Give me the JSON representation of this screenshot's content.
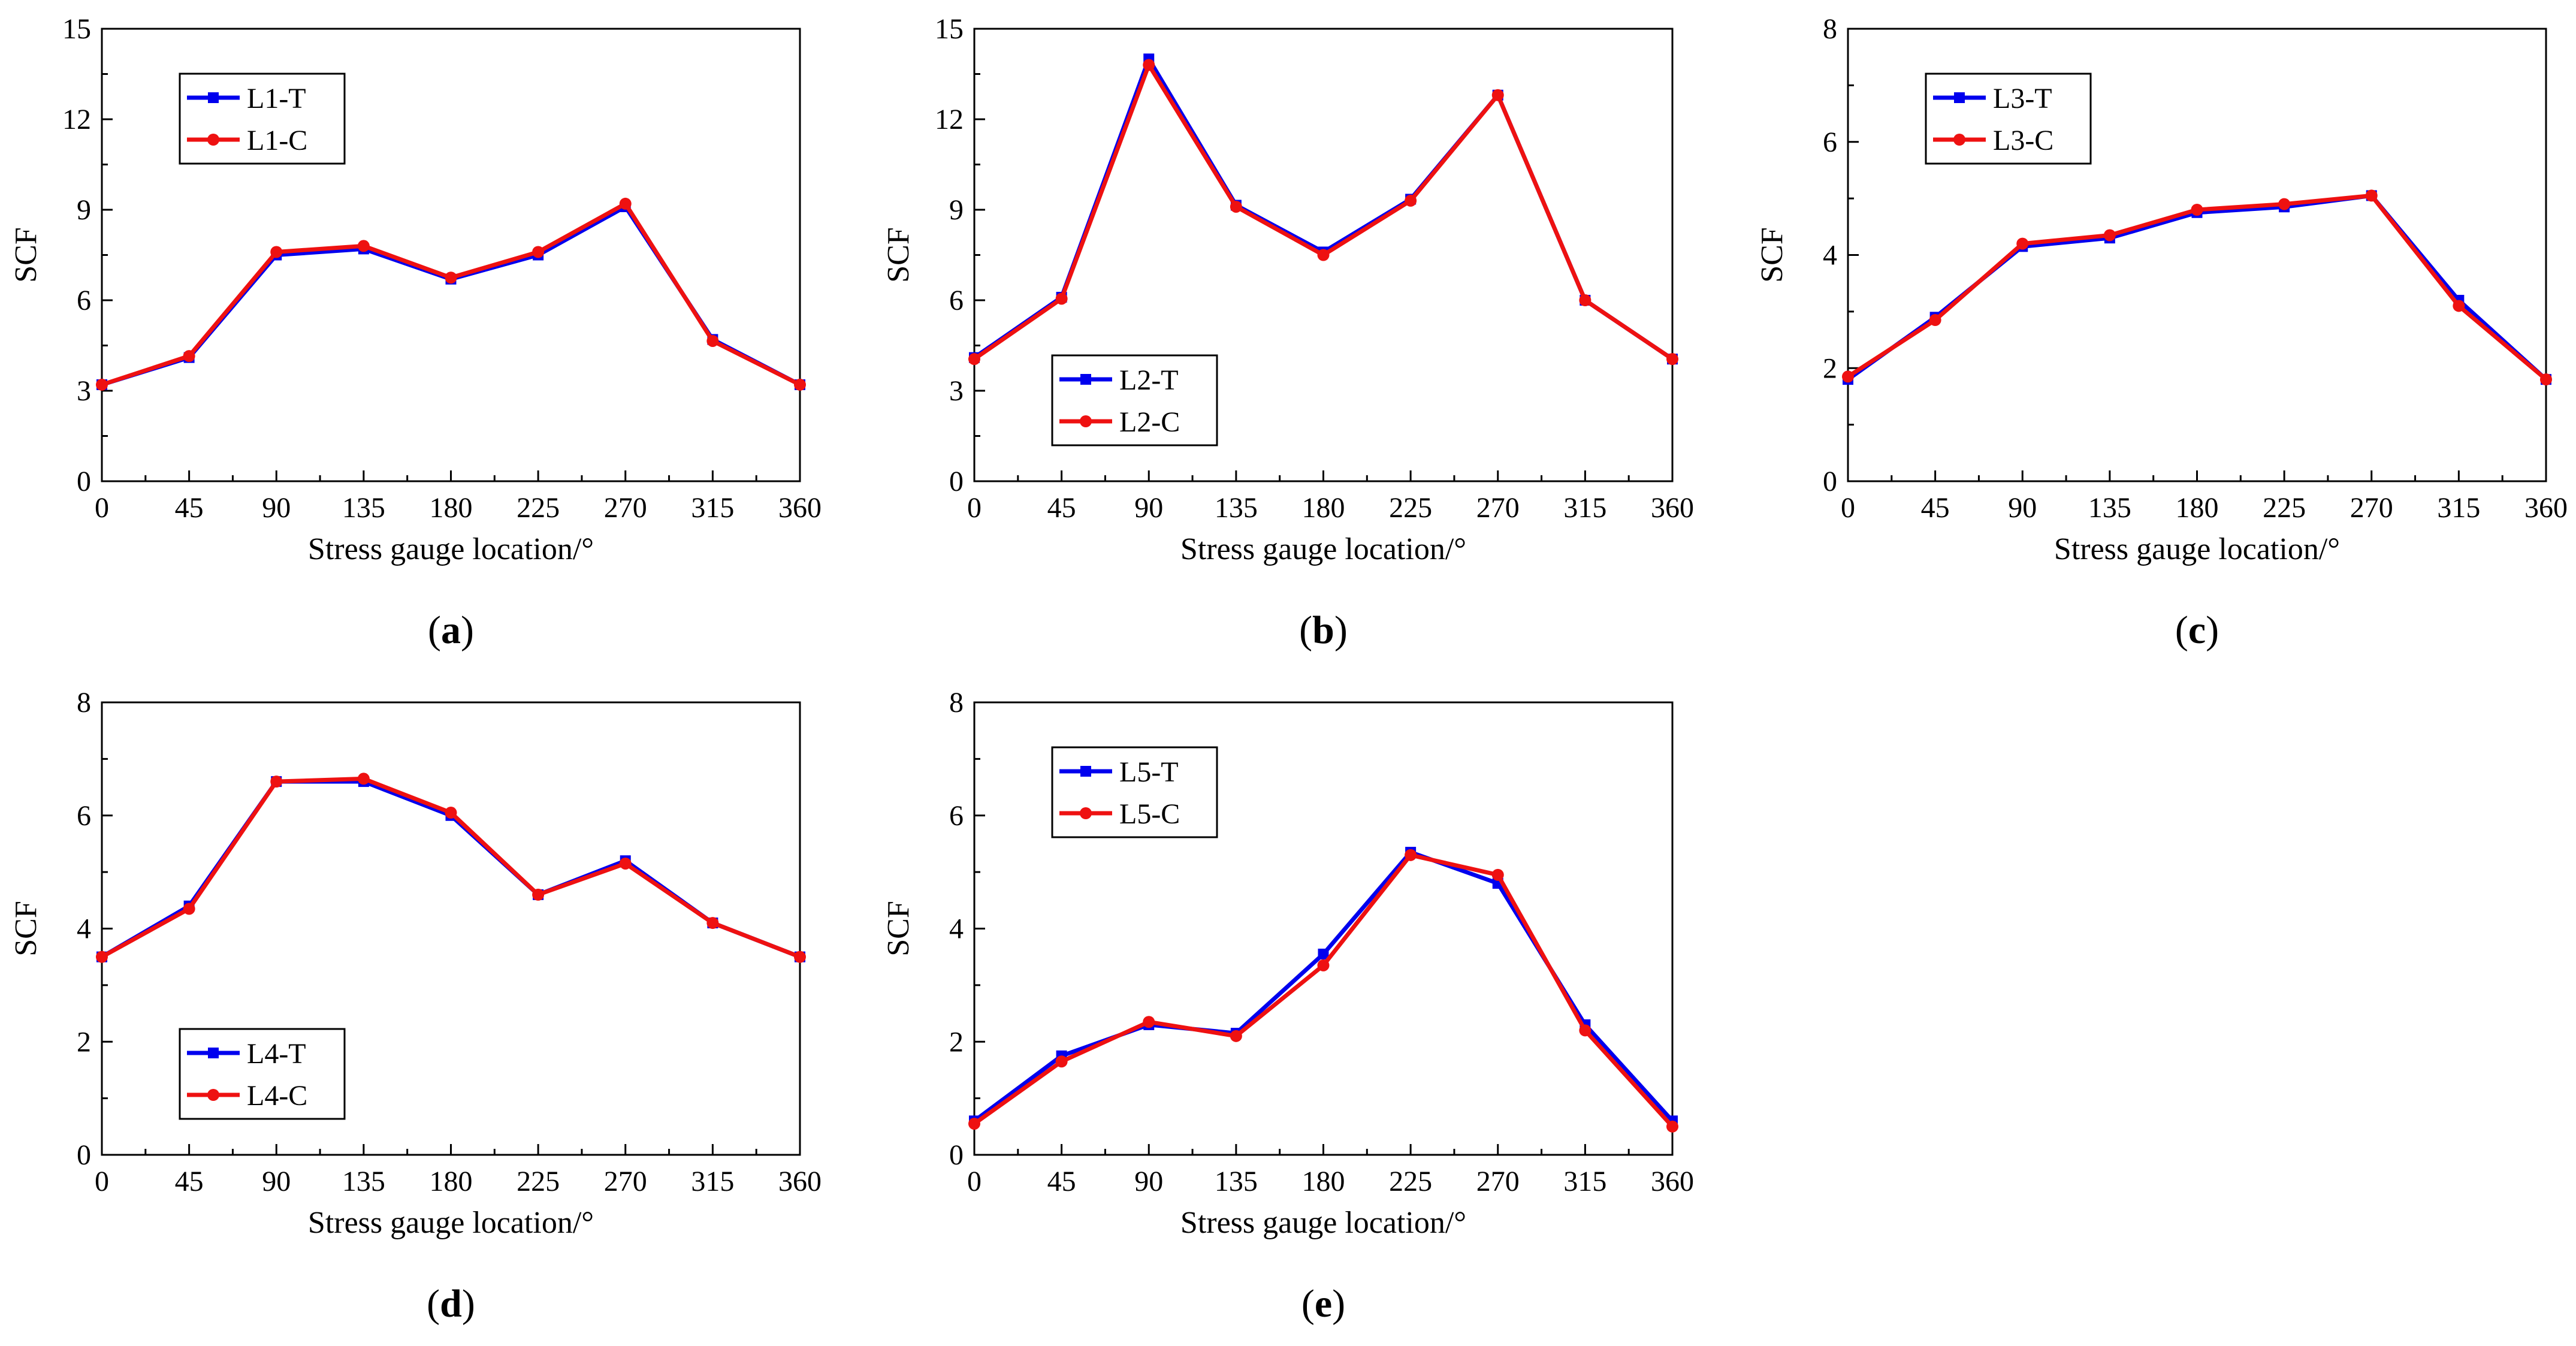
{
  "colors": {
    "series_t": "#0000ee",
    "series_c": "#ee1111",
    "axis": "#000000",
    "background": "#ffffff"
  },
  "chart_data": [
    {
      "panel": "a",
      "type": "line",
      "xlabel": "Stress gauge location/°",
      "ylabel": "SCF",
      "x": [
        0,
        45,
        90,
        135,
        180,
        225,
        270,
        315,
        360
      ],
      "xlim": [
        0,
        360
      ],
      "ylim": [
        0,
        15
      ],
      "yticks": [
        0,
        3,
        6,
        9,
        12,
        15
      ],
      "legend_position": "top-left",
      "series": [
        {
          "name": "L1-T",
          "marker": "square",
          "values": [
            3.2,
            4.1,
            7.5,
            7.7,
            6.7,
            7.5,
            9.1,
            4.7,
            3.2
          ]
        },
        {
          "name": "L1-C",
          "marker": "circle",
          "values": [
            3.2,
            4.15,
            7.6,
            7.8,
            6.75,
            7.6,
            9.2,
            4.65,
            3.2
          ]
        }
      ]
    },
    {
      "panel": "b",
      "type": "line",
      "xlabel": "Stress gauge location/°",
      "ylabel": "SCF",
      "x": [
        0,
        45,
        90,
        135,
        180,
        225,
        270,
        315,
        360
      ],
      "xlim": [
        0,
        360
      ],
      "ylim": [
        0,
        15
      ],
      "yticks": [
        0,
        3,
        6,
        9,
        12,
        15
      ],
      "legend_position": "bottom-left",
      "series": [
        {
          "name": "L2-T",
          "marker": "square",
          "values": [
            4.1,
            6.1,
            14.0,
            9.15,
            7.6,
            9.35,
            12.8,
            6.0,
            4.05
          ]
        },
        {
          "name": "L2-C",
          "marker": "circle",
          "values": [
            4.05,
            6.05,
            13.8,
            9.1,
            7.5,
            9.3,
            12.8,
            6.0,
            4.05
          ]
        }
      ]
    },
    {
      "panel": "c",
      "type": "line",
      "xlabel": "Stress gauge location/°",
      "ylabel": "SCF",
      "x": [
        0,
        45,
        90,
        135,
        180,
        225,
        270,
        315,
        360
      ],
      "xlim": [
        0,
        360
      ],
      "ylim": [
        0,
        8
      ],
      "yticks": [
        0,
        2,
        4,
        6,
        8
      ],
      "legend_position": "top-left",
      "series": [
        {
          "name": "L3-T",
          "marker": "square",
          "values": [
            1.8,
            2.9,
            4.15,
            4.3,
            4.75,
            4.85,
            5.05,
            3.2,
            1.8
          ]
        },
        {
          "name": "L3-C",
          "marker": "circle",
          "values": [
            1.85,
            2.85,
            4.2,
            4.35,
            4.8,
            4.9,
            5.05,
            3.1,
            1.8
          ]
        }
      ]
    },
    {
      "panel": "d",
      "type": "line",
      "xlabel": "Stress gauge location/°",
      "ylabel": "SCF",
      "x": [
        0,
        45,
        90,
        135,
        180,
        225,
        270,
        315,
        360
      ],
      "xlim": [
        0,
        360
      ],
      "ylim": [
        0,
        8
      ],
      "yticks": [
        0,
        2,
        4,
        6,
        8
      ],
      "legend_position": "bottom-left",
      "series": [
        {
          "name": "L4-T",
          "marker": "square",
          "values": [
            3.5,
            4.4,
            6.6,
            6.6,
            6.0,
            4.6,
            5.2,
            4.1,
            3.5
          ]
        },
        {
          "name": "L4-C",
          "marker": "circle",
          "values": [
            3.5,
            4.35,
            6.6,
            6.65,
            6.05,
            4.6,
            5.15,
            4.1,
            3.5
          ]
        }
      ]
    },
    {
      "panel": "e",
      "type": "line",
      "xlabel": "Stress gauge location/°",
      "ylabel": "SCF",
      "x": [
        0,
        45,
        90,
        135,
        180,
        225,
        270,
        315,
        360
      ],
      "xlim": [
        0,
        360
      ],
      "ylim": [
        0,
        8
      ],
      "yticks": [
        0,
        2,
        4,
        6,
        8
      ],
      "legend_position": "top-left",
      "series": [
        {
          "name": "L5-T",
          "marker": "square",
          "values": [
            0.6,
            1.75,
            2.3,
            2.15,
            3.55,
            5.35,
            4.8,
            2.3,
            0.6
          ]
        },
        {
          "name": "L5-C",
          "marker": "circle",
          "values": [
            0.55,
            1.65,
            2.35,
            2.1,
            3.35,
            5.3,
            4.95,
            2.2,
            0.5
          ]
        }
      ]
    }
  ]
}
